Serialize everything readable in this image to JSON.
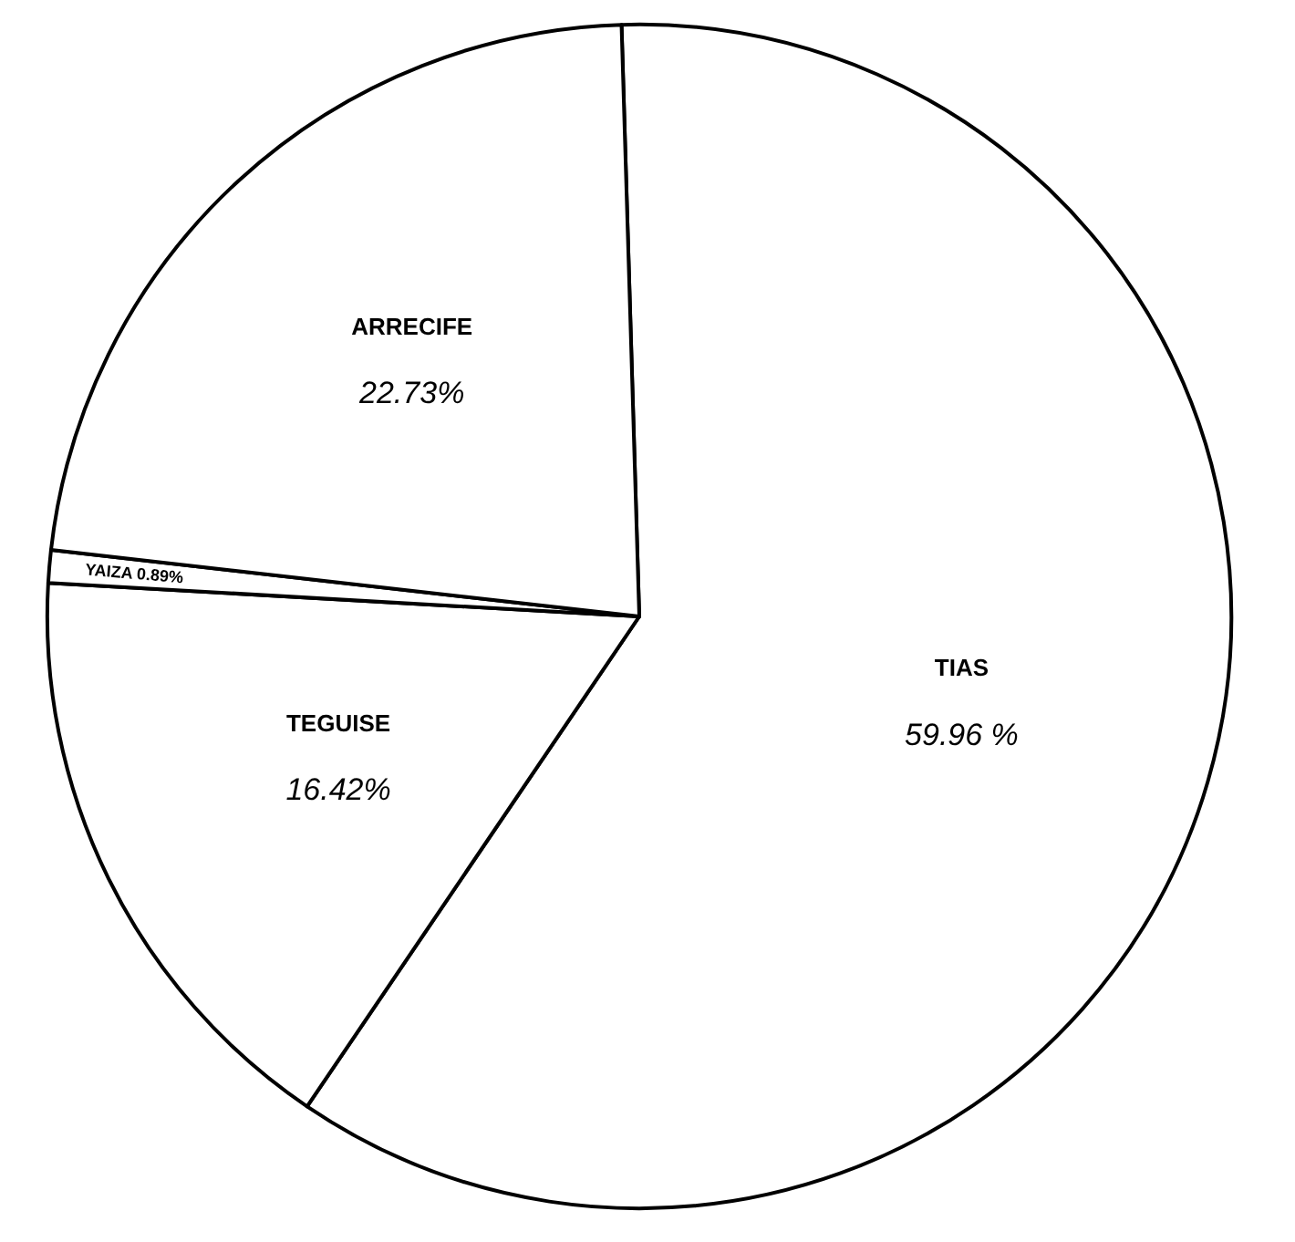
{
  "chart_data": {
    "type": "pie",
    "categories": [
      "TIAS",
      "TEGUISE",
      "YAIZA",
      "ARRECIFE"
    ],
    "values": [
      59.96,
      16.42,
      0.89,
      22.73
    ],
    "value_labels": [
      "59.96 %",
      "16.42%",
      "0.89%",
      "22.73%"
    ],
    "colors": [
      "#ffffff",
      "#ffffff",
      "#ffffff",
      "#ffffff"
    ]
  }
}
